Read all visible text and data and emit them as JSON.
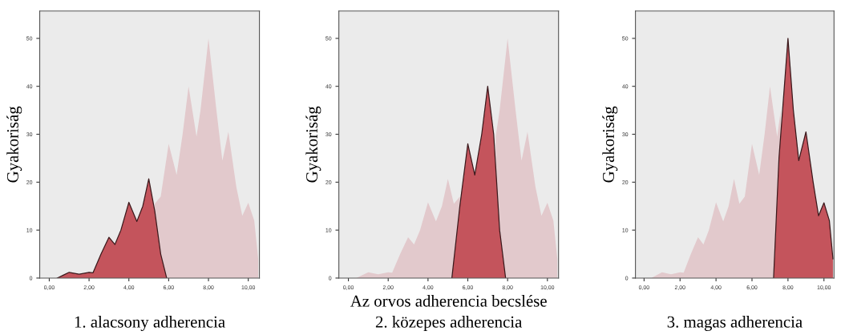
{
  "chart_data": [
    {
      "type": "area",
      "title": "1. alacsony adherencia",
      "ylabel": "Gyakoriság",
      "xlim": [
        -0.48,
        10.56
      ],
      "ylim": [
        0,
        55.7
      ],
      "xticks": [
        {
          "value": 0,
          "label": "0,00"
        },
        {
          "value": 2,
          "label": "2,00"
        },
        {
          "value": 4,
          "label": "4,00"
        },
        {
          "value": 6,
          "label": "6,00"
        },
        {
          "value": 8,
          "label": "8,00"
        },
        {
          "value": 10,
          "label": "10,00"
        }
      ],
      "yticks": [
        0,
        10,
        20,
        30,
        40,
        50
      ],
      "grid": false,
      "series": [
        {
          "color": "#e2c9cc",
          "x": [
            5.3,
            5.6,
            6.0,
            6.4,
            6.7,
            7.0,
            7.4,
            7.6,
            8.0,
            8.4,
            8.7,
            9.0,
            9.4,
            9.7,
            10.0,
            10.3,
            10.5
          ],
          "values": [
            15.5,
            17,
            28,
            21.5,
            30,
            40,
            29.5,
            35,
            50,
            35,
            24.5,
            30.5,
            19,
            13,
            15.7,
            12,
            4
          ]
        },
        {
          "color": "#c4545c",
          "x": [
            0.4,
            0.7,
            1.0,
            1.5,
            2.0,
            2.2,
            2.6,
            3.0,
            3.3,
            3.6,
            4.0,
            4.4,
            4.7,
            5.0,
            5.3,
            5.6,
            5.9
          ],
          "values": [
            0,
            0.6,
            1.2,
            0.8,
            1.2,
            1.1,
            5,
            8.5,
            7,
            10,
            15.8,
            11.8,
            15,
            20.7,
            14,
            5,
            0
          ]
        }
      ]
    },
    {
      "type": "area",
      "title": "2. közepes adherencia",
      "xlabel": "Az orvos adherencia becslése",
      "ylabel": "Gyakoriság",
      "xlim": [
        -0.48,
        10.56
      ],
      "ylim": [
        0,
        55.7
      ],
      "xticks": [
        {
          "value": 0,
          "label": "0,00"
        },
        {
          "value": 2,
          "label": "2,00"
        },
        {
          "value": 4,
          "label": "4,00"
        },
        {
          "value": 6,
          "label": "6,00"
        },
        {
          "value": 8,
          "label": "8,00"
        },
        {
          "value": 10,
          "label": "10,00"
        }
      ],
      "yticks": [
        0,
        10,
        20,
        30,
        40,
        50
      ],
      "grid": false,
      "series": [
        {
          "color": "#e2c9cc",
          "x": [
            0.4,
            0.7,
            1.0,
            1.5,
            2.0,
            2.2,
            2.6,
            3.0,
            3.3,
            3.6,
            4.0,
            4.4,
            4.7,
            5.0,
            5.3,
            5.6,
            6.0,
            6.4,
            6.7,
            7.0,
            7.4,
            7.6,
            8.0,
            8.4,
            8.7,
            9.0,
            9.4,
            9.7,
            10.0,
            10.3,
            10.5
          ],
          "values": [
            0,
            0.6,
            1.2,
            0.8,
            1.2,
            1.1,
            5,
            8.5,
            7,
            10,
            15.8,
            11.8,
            15,
            20.7,
            15.5,
            17,
            null,
            null,
            null,
            null,
            29.5,
            35,
            50,
            35,
            24.5,
            30.5,
            19,
            13,
            15.7,
            12,
            4
          ]
        },
        {
          "color": "#c4545c",
          "x": [
            5.2,
            5.6,
            6.0,
            6.35,
            6.7,
            7.0,
            7.3,
            7.6,
            7.9
          ],
          "values": [
            0,
            15,
            28,
            21.5,
            30,
            40,
            30,
            10,
            0
          ]
        }
      ]
    },
    {
      "type": "area",
      "title": "3. magas adherencia",
      "ylabel": "Gyakoriság",
      "xlim": [
        -0.48,
        10.56
      ],
      "ylim": [
        0,
        55.7
      ],
      "xticks": [
        {
          "value": 0,
          "label": "0,00"
        },
        {
          "value": 2,
          "label": "2,00"
        },
        {
          "value": 4,
          "label": "4,00"
        },
        {
          "value": 6,
          "label": "6,00"
        },
        {
          "value": 8,
          "label": "8,00"
        },
        {
          "value": 10,
          "label": "10,00"
        }
      ],
      "yticks": [
        0,
        10,
        20,
        30,
        40,
        50
      ],
      "grid": false,
      "series": [
        {
          "color": "#e2c9cc",
          "x": [
            0.4,
            0.7,
            1.0,
            1.5,
            2.0,
            2.2,
            2.6,
            3.0,
            3.3,
            3.6,
            4.0,
            4.4,
            4.7,
            5.0,
            5.3,
            5.6,
            6.0,
            6.4,
            6.7,
            7.0,
            7.4,
            7.6
          ],
          "values": [
            0,
            0.6,
            1.2,
            0.8,
            1.2,
            1.1,
            5,
            8.5,
            7,
            10,
            15.8,
            11.8,
            15,
            20.7,
            15.5,
            17,
            28,
            21.5,
            30,
            40,
            29.5,
            35
          ]
        },
        {
          "color": "#c4545c",
          "x": [
            7.2,
            7.5,
            8.0,
            8.3,
            8.6,
            9.0,
            9.4,
            9.7,
            10.0,
            10.3,
            10.5
          ],
          "values": [
            0,
            25,
            50,
            35,
            24.5,
            30.5,
            20,
            13,
            15.7,
            12,
            4
          ]
        }
      ]
    }
  ]
}
